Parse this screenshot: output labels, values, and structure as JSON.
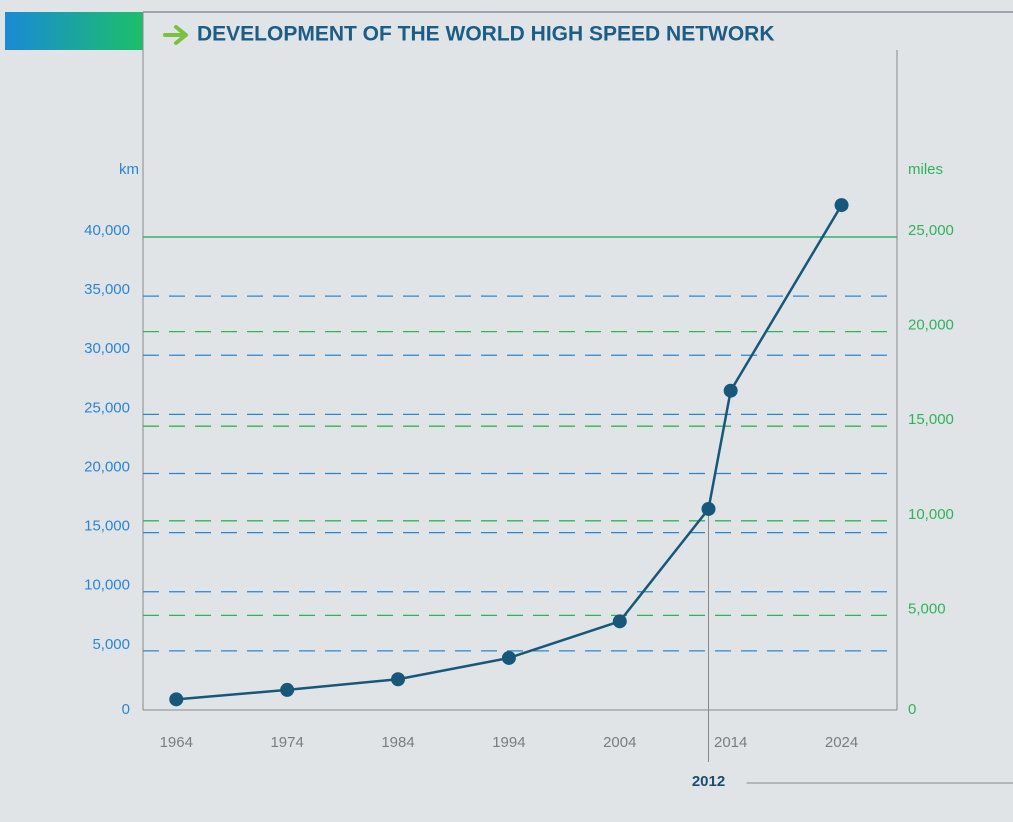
{
  "chart_data": {
    "type": "line",
    "title": "DEVELOPMENT OF THE WORLD HIGH SPEED NETWORK",
    "ylabel": "km",
    "y2label": "miles",
    "x": [
      1964,
      1974,
      1984,
      1994,
      2004,
      2012,
      2014,
      2024
    ],
    "series": [
      {
        "name": "km",
        "color": "#17587a",
        "values": [
          900,
          1700,
          2600,
          4400,
          7500,
          17000,
          27000,
          42700
        ]
      }
    ],
    "xlim": [
      1961,
      2029
    ],
    "xticks": [
      1964,
      1974,
      1984,
      1994,
      2004,
      2014,
      2024
    ],
    "ylim": [
      0,
      40000
    ],
    "yticks": [
      0,
      {
        "value": 5000,
        "label": "5,000"
      },
      {
        "value": 10000,
        "label": "10,000"
      },
      {
        "value": 15000,
        "label": "15,000"
      },
      {
        "value": 20000,
        "label": "20,000"
      },
      {
        "value": 25000,
        "label": "25,000"
      },
      {
        "value": 30000,
        "label": "30,000"
      },
      {
        "value": 35000,
        "label": "35,000"
      },
      {
        "value": 40000,
        "label": "40,000"
      }
    ],
    "y2lim": [
      0,
      25000
    ],
    "y2ticks": [
      0,
      {
        "value": 5000,
        "label": "5,000"
      },
      {
        "value": 10000,
        "label": "10,000"
      },
      {
        "value": 15000,
        "label": "15,000"
      },
      {
        "value": 20000,
        "label": "20,000"
      },
      {
        "value": 25000,
        "label": "25,000"
      }
    ],
    "ycolor": "#2a86d4",
    "y2color": "#2fb35a",
    "grid": true,
    "highlight_x": 2012
  }
}
